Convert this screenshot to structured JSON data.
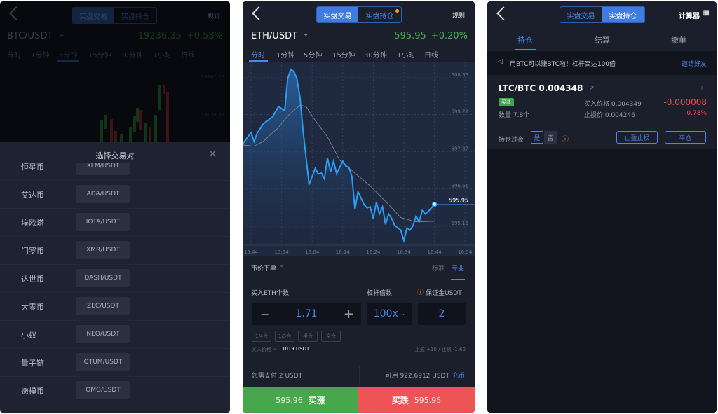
{
  "panel1": {
    "back_icon": "chevron-left-icon",
    "segment": [
      "实盘交易",
      "实盘持仓"
    ],
    "rules": "规则",
    "pair": "BTC/USDT",
    "price": "19236.35",
    "change": "+0.58%",
    "intervals": [
      "分时",
      "1分钟",
      "5分钟",
      "15分钟",
      "30分钟",
      "1小时",
      "日线"
    ],
    "active_interval": "5分钟",
    "axis_labels": [
      "19362.16",
      "19138.36"
    ],
    "modal": {
      "title": "选择交易对",
      "close_icon": "close-icon",
      "rows": [
        {
          "name": "恒星币",
          "pair": "XLM/USDT"
        },
        {
          "name": "艾达币",
          "pair": "ADA/USDT"
        },
        {
          "name": "埃欧塔",
          "pair": "IOTA/USDT"
        },
        {
          "name": "门罗币",
          "pair": "XMR/USDT"
        },
        {
          "name": "达世币",
          "pair": "DASH/USDT"
        },
        {
          "name": "大零币",
          "pair": "ZEC/USDT"
        },
        {
          "name": "小蚁",
          "pair": "NEO/USDT"
        },
        {
          "name": "量子链",
          "pair": "QTUM/USDT"
        },
        {
          "name": "嫩模币",
          "pair": "OMG/USDT"
        }
      ]
    }
  },
  "panel2": {
    "segment": [
      "实盘交易",
      "实盘持仓"
    ],
    "rules": "规则",
    "pair": "ETH/USDT",
    "price": "595.95",
    "change": "+0.20%",
    "intervals": [
      "分时",
      "1分钟",
      "5分钟",
      "15分钟",
      "30分钟",
      "1小时",
      "日线"
    ],
    "active_interval": "分时",
    "order": {
      "type": "市价下单",
      "modes": [
        "标准",
        "专业"
      ],
      "active_mode": "专业",
      "qty_label": "买入ETH个数",
      "qty": "1.71",
      "leverage_label": "杠杆倍数",
      "leverage": "100x",
      "margin_label": "保证金USDT",
      "margin": "2",
      "positions": [
        "1/4仓",
        "1/3仓",
        "半仓",
        "全仓"
      ],
      "price_label": "买入价格 ≈",
      "price_value": "1019 USDT",
      "tp_sl": "止盈 +10 / 止损 -1.60",
      "pay": "您需支付 2 USDT",
      "available": "可用 922.6912 USDT",
      "recharge": "充币",
      "buy_up_price": "595.96",
      "buy_up": "买涨",
      "buy_down": "买跌",
      "buy_down_price": "595.95"
    },
    "colors": {
      "up": "#46b04e",
      "down": "#ef5350",
      "accent": "#3f7be0",
      "line": "#2a9df4"
    }
  },
  "chart_data": {
    "type": "line",
    "xlabel": "",
    "ylabel": "",
    "x_ticks": [
      "15:44",
      "15:54",
      "16:04",
      "16:14",
      "16:24",
      "16:34",
      "16:44",
      "16:54"
    ],
    "y_ticks": [
      "600.56",
      "599.22",
      "597.87",
      "596.51",
      "595.15"
    ],
    "ylim": [
      594.4,
      601.0
    ],
    "grid": true,
    "last_price_label": "595.95",
    "series": [
      {
        "style": "area",
        "color": "#2a9df4",
        "points": [
          [
            "15:41",
            598.15
          ],
          [
            "15:44",
            598.56
          ],
          [
            "15:45",
            598.24
          ],
          [
            "15:46",
            598.54
          ],
          [
            "15:48",
            598.88
          ],
          [
            "15:51",
            599.13
          ],
          [
            "15:53",
            599.51
          ],
          [
            "15:55",
            599.36
          ],
          [
            "15:56",
            600.53
          ],
          [
            "15:57",
            600.86
          ],
          [
            "15:58",
            600.79
          ],
          [
            "15:59",
            600.53
          ],
          [
            "16:00",
            599.85
          ],
          [
            "16:01",
            598.66
          ],
          [
            "16:03",
            596.67
          ],
          [
            "16:05",
            597.26
          ],
          [
            "16:06",
            597.05
          ],
          [
            "16:07",
            597.09
          ],
          [
            "16:08",
            596.88
          ],
          [
            "16:09",
            597.64
          ],
          [
            "16:10",
            597.13
          ],
          [
            "16:11",
            597.52
          ],
          [
            "16:12",
            597.07
          ],
          [
            "16:14",
            597.52
          ],
          [
            "16:15",
            597.35
          ],
          [
            "16:16",
            597.3
          ],
          [
            "16:17",
            596.96
          ],
          [
            "16:18",
            595.77
          ],
          [
            "16:19",
            596.41
          ],
          [
            "16:21",
            595.94
          ],
          [
            "16:22",
            595.82
          ],
          [
            "16:23",
            595.86
          ],
          [
            "16:24",
            595.43
          ],
          [
            "16:25",
            596.03
          ],
          [
            "16:26",
            595.6
          ],
          [
            "16:27",
            595.86
          ],
          [
            "16:28",
            595.22
          ],
          [
            "16:29",
            595.6
          ],
          [
            "16:30",
            595.43
          ],
          [
            "16:31",
            595.18
          ],
          [
            "16:33",
            595.01
          ],
          [
            "16:34",
            594.63
          ],
          [
            "16:35",
            595.09
          ],
          [
            "16:36",
            595.01
          ],
          [
            "16:37",
            595.18
          ],
          [
            "16:38",
            595.52
          ],
          [
            "16:39",
            595.31
          ],
          [
            "16:40",
            595.73
          ],
          [
            "16:41",
            595.6
          ],
          [
            "16:42",
            595.69
          ],
          [
            "16:44",
            595.95
          ]
        ]
      },
      {
        "style": "ma",
        "color": "#8a8f9c",
        "points": [
          [
            "15:41",
            598.11
          ],
          [
            "15:45",
            598.07
          ],
          [
            "15:48",
            598.24
          ],
          [
            "15:53",
            598.75
          ],
          [
            "15:56",
            599.17
          ],
          [
            "16:00",
            599.56
          ],
          [
            "16:02",
            599.51
          ],
          [
            "16:05",
            599.0
          ],
          [
            "16:09",
            598.41
          ],
          [
            "16:13",
            597.56
          ],
          [
            "16:17",
            597.18
          ],
          [
            "16:23",
            596.62
          ],
          [
            "16:29",
            595.94
          ],
          [
            "16:33",
            595.47
          ],
          [
            "16:38",
            595.31
          ],
          [
            "16:44",
            595.33
          ]
        ]
      }
    ]
  },
  "panel3": {
    "segment": [
      "实盘交易",
      "实盘持仓"
    ],
    "calculator": "计算器",
    "tabs": [
      "持仓",
      "结算",
      "撤单"
    ],
    "active_tab": "持仓",
    "notice": "用BTC可以赚BTC啦！杠杆高达100倍",
    "invite": "邀请好友",
    "position": {
      "pair": "LTC/BTC 0.004348",
      "badge": "买涨",
      "qty": "数量 7.8个",
      "buy_price": "买入价格 0.004349",
      "stop_price": "止损价 0.004246",
      "pnl": "-0.000008",
      "pnl_pct": "-0.78%",
      "overnight_label": "持仓过夜",
      "overnight_options": [
        "是",
        "否"
      ],
      "overnight_selected": "是",
      "tp_sl_button": "止盈止损",
      "close_button": "平仓"
    }
  }
}
